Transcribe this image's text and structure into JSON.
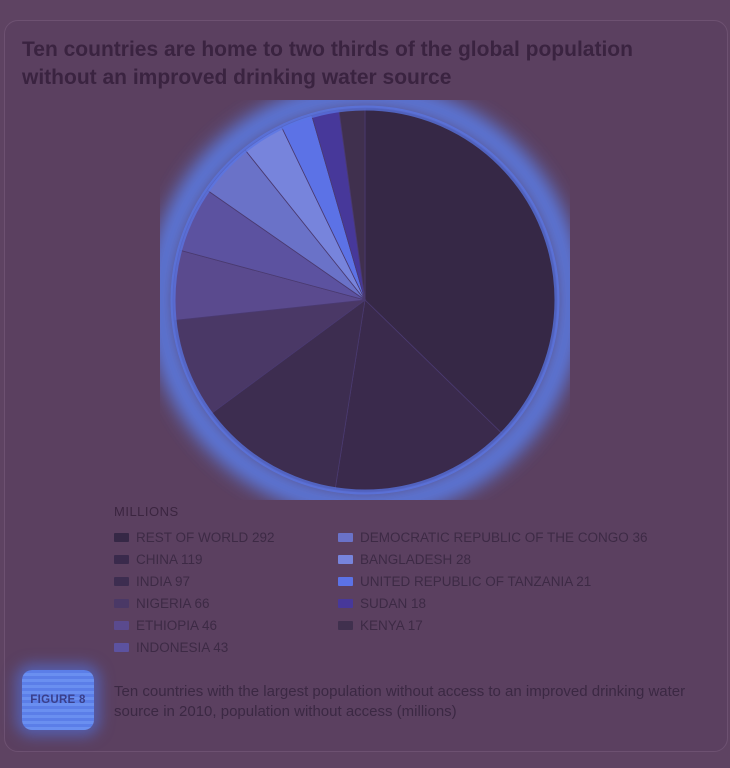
{
  "title": "Ten countries are home to two thirds of the global population without an improved drinking water source",
  "legend_header": "MILLIONS",
  "figure_label": "FIGURE 8",
  "caption": "Ten countries with the largest population without access to an improved drinking water source in 2010, population without access (millions)",
  "chart_data": {
    "type": "pie",
    "title": "Ten countries are home to two thirds of the global population without an improved drinking water source",
    "unit": "MILLIONS",
    "legend_placement": "bottom",
    "slices": [
      {
        "label": "REST OF WORLD",
        "value": 292,
        "display": "REST OF WORLD 292",
        "color": "#362846"
      },
      {
        "label": "CHINA",
        "value": 119,
        "display": "CHINA 119",
        "color": "#3a2a4c"
      },
      {
        "label": "INDIA",
        "value": 97,
        "display": "INDIA 97",
        "color": "#3d2d50"
      },
      {
        "label": "NIGERIA",
        "value": 66,
        "display": "NIGERIA 66",
        "color": "#4a3866"
      },
      {
        "label": "ETHIOPIA",
        "value": 46,
        "display": "ETHIOPIA 46",
        "color": "#5a4a8e"
      },
      {
        "label": "INDONESIA",
        "value": 43,
        "display": "INDONESIA 43",
        "color": "#5c52a0"
      },
      {
        "label": "DEMOCRATIC REPUBLIC OF THE CONGO",
        "value": 36,
        "display": "DEMOCRATIC REPUBLIC OF THE CONGO 36",
        "color": "#6a72c8"
      },
      {
        "label": "BANGLADESH",
        "value": 28,
        "display": "BANGLADESH 28",
        "color": "#7784dc"
      },
      {
        "label": "UNITED REPUBLIC OF TANZANIA",
        "value": 21,
        "display": "UNITED REPUBLIC OF TANZANIA 21",
        "color": "#5c72e6"
      },
      {
        "label": "SUDAN",
        "value": 18,
        "display": "SUDAN 18",
        "color": "#47389a"
      },
      {
        "label": "KENYA",
        "value": 17,
        "display": "KENYA 17",
        "color": "#40304e"
      }
    ]
  }
}
